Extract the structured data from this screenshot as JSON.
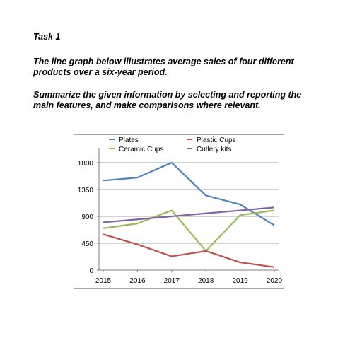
{
  "task": {
    "title": "Task 1",
    "line1": "The line graph below illustrates average sales of four different",
    "line2": "products over a six-year period.",
    "line3": "Summarize the given information by selecting and reporting the",
    "line4": "main features, and make comparisons where relevant."
  },
  "chart_data": {
    "type": "line",
    "title": "",
    "xlabel": "",
    "ylabel": "",
    "x": [
      "2015",
      "2016",
      "2017",
      "2018",
      "2019",
      "2020"
    ],
    "yticks": [
      0,
      450,
      900,
      1350,
      1800
    ],
    "ylim": [
      0,
      2000
    ],
    "grid": true,
    "legend_position": "top",
    "series": [
      {
        "name": "Plates",
        "color": "#4f81bd",
        "values": [
          1500,
          1550,
          1800,
          1250,
          1100,
          750
        ]
      },
      {
        "name": "Ceramic Cups",
        "color": "#9bbb59",
        "values": [
          700,
          780,
          1000,
          320,
          920,
          1000
        ]
      },
      {
        "name": "Plastic Cups",
        "color": "#c0504d",
        "values": [
          600,
          430,
          230,
          320,
          130,
          50
        ]
      },
      {
        "name": "Cutlery kits",
        "color": "#8064a2",
        "values": [
          800,
          850,
          900,
          950,
          1000,
          1050
        ]
      }
    ]
  }
}
